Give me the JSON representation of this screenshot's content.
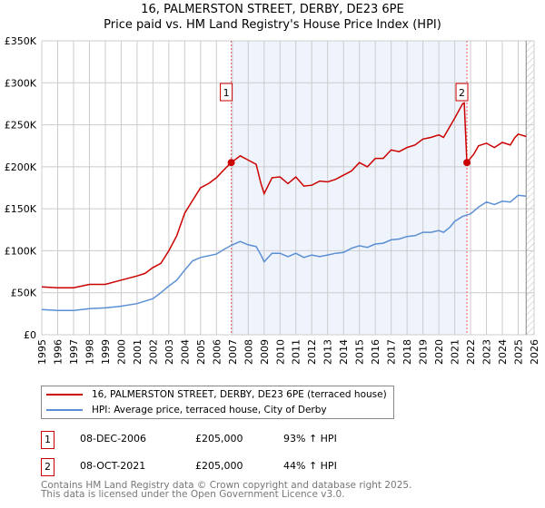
{
  "chart_data": {
    "type": "line",
    "title": "16, PALMERSTON STREET, DERBY, DE23 6PE",
    "subtitle": "Price paid vs. HM Land Registry's House Price Index (HPI)",
    "xlim": [
      1995,
      2026
    ],
    "ylim": [
      0,
      350000
    ],
    "x_ticks": [
      "1995",
      "1996",
      "1997",
      "1998",
      "1999",
      "2000",
      "2001",
      "2002",
      "2003",
      "2004",
      "2005",
      "2006",
      "2007",
      "2008",
      "2009",
      "2010",
      "2011",
      "2012",
      "2013",
      "2014",
      "2015",
      "2016",
      "2017",
      "2018",
      "2019",
      "2020",
      "2021",
      "2022",
      "2023",
      "2024",
      "2025",
      "2026"
    ],
    "y_ticks": [
      {
        "value": 0,
        "label": "£0"
      },
      {
        "value": 50000,
        "label": "£50K"
      },
      {
        "value": 100000,
        "label": "£100K"
      },
      {
        "value": 150000,
        "label": "£150K"
      },
      {
        "value": 200000,
        "label": "£200K"
      },
      {
        "value": 250000,
        "label": "£250K"
      },
      {
        "value": 300000,
        "label": "£300K"
      },
      {
        "value": 350000,
        "label": "£350K"
      }
    ],
    "grid": true,
    "shaded_range": [
      2006.93,
      2021.77
    ],
    "hatched_from": 2025.5,
    "series": [
      {
        "name": "16, PALMERSTON STREET, DERBY, DE23 6PE (terraced house)",
        "color": "#cc0000",
        "x": [
          1995,
          1996,
          1997,
          1998,
          1999,
          2000,
          2001,
          2001.5,
          2002,
          2002.5,
          2003,
          2003.5,
          2004,
          2004.5,
          2005,
          2005.5,
          2006,
          2006.5,
          2006.93,
          2007.5,
          2008,
          2008.5,
          2008.8,
          2009,
          2009.5,
          2010,
          2010.5,
          2011,
          2011.5,
          2012,
          2012.5,
          2013,
          2013.5,
          2014,
          2014.5,
          2015,
          2015.5,
          2016,
          2016.5,
          2017,
          2017.5,
          2018,
          2018.5,
          2019,
          2019.5,
          2020,
          2020.3,
          2020.7,
          2021,
          2021.5,
          2021.6,
          2021.77,
          2022.2,
          2022.5,
          2023,
          2023.5,
          2024,
          2024.5,
          2024.8,
          2025,
          2025.5
        ],
        "y": [
          57000,
          56000,
          56000,
          60000,
          60000,
          65000,
          70000,
          73000,
          80000,
          85000,
          100000,
          118000,
          145000,
          160000,
          175000,
          180000,
          187000,
          197000,
          205000,
          213000,
          208000,
          203000,
          180000,
          168000,
          187000,
          188000,
          180000,
          188000,
          177000,
          178000,
          183000,
          182000,
          185000,
          190000,
          195000,
          205000,
          200000,
          210000,
          210000,
          220000,
          218000,
          223000,
          226000,
          233000,
          235000,
          238000,
          235000,
          248000,
          258000,
          275000,
          276000,
          205000,
          215000,
          225000,
          228000,
          223000,
          229000,
          226000,
          235000,
          239000,
          236000
        ]
      },
      {
        "name": "HPI: Average price, terraced house, City of Derby",
        "color": "#5b8fd4",
        "x": [
          1995,
          1996,
          1997,
          1998,
          1999,
          2000,
          2001,
          2002,
          2002.5,
          2003,
          2003.5,
          2004,
          2004.5,
          2005,
          2006,
          2006.5,
          2007,
          2007.5,
          2008,
          2008.5,
          2008.8,
          2009,
          2009.5,
          2010,
          2010.5,
          2011,
          2011.5,
          2012,
          2012.5,
          2013,
          2013.5,
          2014,
          2014.5,
          2015,
          2015.5,
          2016,
          2016.5,
          2017,
          2017.5,
          2018,
          2018.5,
          2019,
          2019.5,
          2020,
          2020.3,
          2020.7,
          2021,
          2021.5,
          2022,
          2022.5,
          2023,
          2023.5,
          2024,
          2024.5,
          2025,
          2025.5
        ],
        "y": [
          30000,
          29000,
          29000,
          31000,
          32000,
          34000,
          37000,
          43000,
          50000,
          58000,
          65000,
          77000,
          88000,
          92000,
          96000,
          102000,
          107000,
          111000,
          107000,
          105000,
          95000,
          87000,
          97000,
          97000,
          93000,
          97000,
          92000,
          95000,
          93000,
          95000,
          97000,
          98000,
          103000,
          106000,
          104000,
          108000,
          109000,
          113000,
          114000,
          117000,
          118000,
          122000,
          122000,
          124000,
          122000,
          128000,
          135000,
          141000,
          144000,
          152000,
          158000,
          155000,
          159000,
          158000,
          166000,
          165000
        ]
      }
    ],
    "annotations": [
      {
        "label": "1",
        "x": 2006.93,
        "y": 205000
      },
      {
        "label": "2",
        "x": 2021.77,
        "y": 205000
      }
    ]
  },
  "title": "16, PALMERSTON STREET, DERBY, DE23 6PE",
  "subtitle": "Price paid vs. HM Land Registry's House Price Index (HPI)",
  "legend": {
    "red": "16, PALMERSTON STREET, DERBY, DE23 6PE (terraced house)",
    "blue": "HPI: Average price, terraced house, City of Derby"
  },
  "transactions": [
    {
      "num": "1",
      "date": "08-DEC-2006",
      "price": "£205,000",
      "hpi": "93% ↑ HPI"
    },
    {
      "num": "2",
      "date": "08-OCT-2021",
      "price": "£205,000",
      "hpi": "44% ↑ HPI"
    }
  ],
  "footer": {
    "line1": "Contains HM Land Registry data © Crown copyright and database right 2025.",
    "line2": "This data is licensed under the Open Government Licence v3.0."
  }
}
